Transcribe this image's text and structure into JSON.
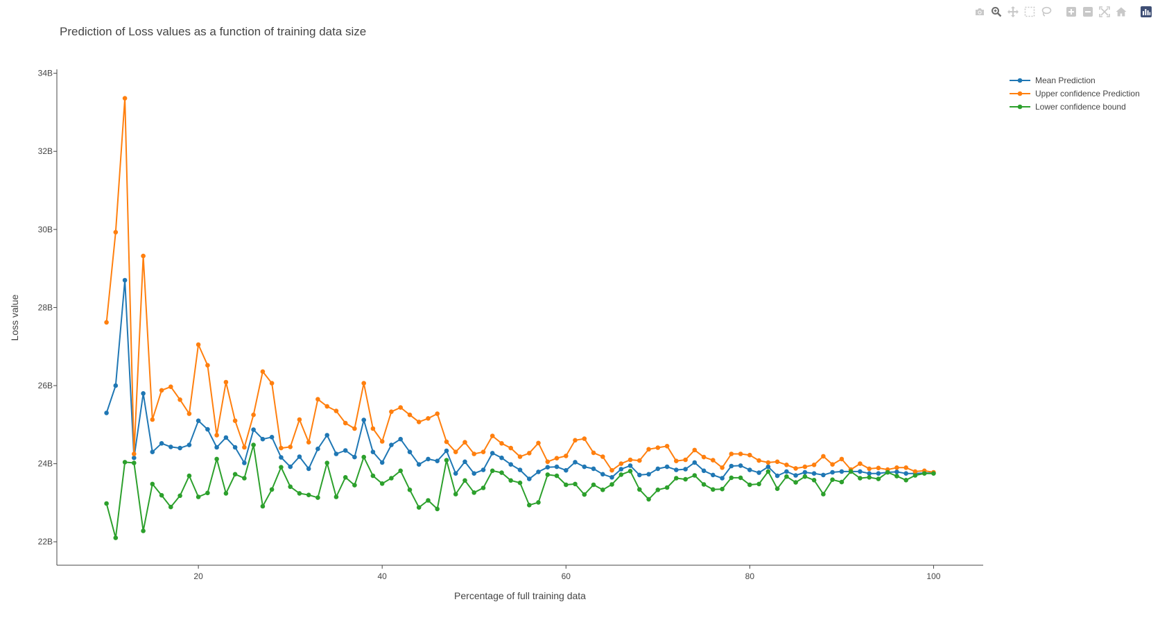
{
  "colors": {
    "mean": "#1f77b4",
    "upper": "#ff7f0e",
    "lower": "#2ca02c",
    "modebar_icon": "#c8c8c8",
    "modebar_logo": "#3f4f75"
  },
  "modebar": {
    "icons": [
      "camera-icon",
      "zoom-icon",
      "pan-icon",
      "box-select-icon",
      "lasso-icon",
      "zoom-in-icon",
      "zoom-out-icon",
      "autoscale-icon",
      "reset-axes-icon",
      "plotly-logo-icon"
    ]
  },
  "chart_data": {
    "type": "line",
    "title": "Prediction of Loss values as a function of training data size",
    "xlabel": "Percentage of full training data",
    "ylabel": "Loss value",
    "xlim": [
      4.6,
      105.4
    ],
    "ylim": [
      21.4,
      34.1
    ],
    "xticks": [
      20,
      40,
      60,
      80,
      100
    ],
    "xtick_labels": [
      "20",
      "40",
      "60",
      "80",
      "100"
    ],
    "yticks": [
      22,
      24,
      26,
      28,
      30,
      32,
      34
    ],
    "ytick_labels": [
      "22B",
      "24B",
      "26B",
      "28B",
      "30B",
      "32B",
      "34B"
    ],
    "grid": false,
    "legend_position": "top-right",
    "x": [
      10,
      11,
      12,
      13,
      14,
      15,
      16,
      17,
      18,
      19,
      20,
      21,
      22,
      23,
      24,
      25,
      26,
      27,
      28,
      29,
      30,
      31,
      32,
      33,
      34,
      35,
      36,
      37,
      38,
      39,
      40,
      41,
      42,
      43,
      44,
      45,
      46,
      47,
      48,
      49,
      50,
      51,
      52,
      53,
      54,
      55,
      56,
      57,
      58,
      59,
      60,
      61,
      62,
      63,
      64,
      65,
      66,
      67,
      68,
      69,
      70,
      71,
      72,
      73,
      74,
      75,
      76,
      77,
      78,
      79,
      80,
      81,
      82,
      83,
      84,
      85,
      86,
      87,
      88,
      89,
      90,
      91,
      92,
      93,
      94,
      95,
      96,
      97,
      98,
      99,
      100
    ],
    "series": [
      {
        "name": "Mean Prediction",
        "color_key": "mean",
        "values": [
          25.3,
          26.0,
          28.7,
          24.15,
          25.8,
          24.3,
          24.52,
          24.43,
          24.4,
          24.48,
          25.1,
          24.88,
          24.42,
          24.67,
          24.42,
          24.02,
          24.87,
          24.63,
          24.68,
          24.16,
          23.92,
          24.18,
          23.87,
          24.38,
          24.73,
          24.25,
          24.34,
          24.17,
          25.12,
          24.3,
          24.03,
          24.48,
          24.63,
          24.3,
          23.98,
          24.12,
          24.07,
          24.33,
          23.75,
          24.05,
          23.75,
          23.84,
          24.27,
          24.15,
          23.98,
          23.84,
          23.61,
          23.79,
          23.91,
          23.92,
          23.83,
          24.04,
          23.92,
          23.87,
          23.73,
          23.65,
          23.86,
          23.95,
          23.71,
          23.73,
          23.87,
          23.92,
          23.84,
          23.86,
          24.03,
          23.82,
          23.71,
          23.63,
          23.94,
          23.95,
          23.84,
          23.77,
          23.92,
          23.69,
          23.8,
          23.7,
          23.78,
          23.75,
          23.71,
          23.78,
          23.8,
          23.8,
          23.8,
          23.75,
          23.75,
          23.78,
          23.79,
          23.75,
          23.75,
          23.76,
          23.76
        ]
      },
      {
        "name": "Upper confidence Prediction",
        "color_key": "upper",
        "values": [
          27.62,
          29.93,
          33.36,
          24.25,
          29.32,
          25.13,
          25.88,
          25.97,
          25.64,
          25.28,
          27.05,
          26.52,
          24.73,
          26.09,
          25.1,
          24.42,
          25.25,
          26.36,
          26.06,
          24.4,
          24.43,
          25.13,
          24.55,
          25.65,
          25.47,
          25.35,
          25.04,
          24.9,
          26.06,
          24.9,
          24.57,
          25.33,
          25.44,
          25.25,
          25.07,
          25.16,
          25.28,
          24.56,
          24.3,
          24.55,
          24.25,
          24.3,
          24.71,
          24.52,
          24.4,
          24.18,
          24.27,
          24.53,
          24.05,
          24.14,
          24.2,
          24.6,
          24.64,
          24.28,
          24.18,
          23.83,
          24.0,
          24.1,
          24.08,
          24.37,
          24.41,
          24.45,
          24.07,
          24.1,
          24.35,
          24.17,
          24.09,
          23.9,
          24.25,
          24.25,
          24.22,
          24.08,
          24.03,
          24.05,
          23.97,
          23.88,
          23.92,
          23.97,
          24.19,
          23.98,
          24.12,
          23.85,
          24.0,
          23.87,
          23.89,
          23.85,
          23.9,
          23.9,
          23.8,
          23.82,
          23.78
        ]
      },
      {
        "name": "Lower confidence bound",
        "color_key": "lower",
        "values": [
          22.98,
          22.1,
          24.04,
          24.02,
          22.28,
          23.48,
          23.19,
          22.89,
          23.18,
          23.69,
          23.15,
          23.25,
          24.12,
          23.24,
          23.73,
          23.63,
          24.48,
          22.91,
          23.34,
          23.91,
          23.41,
          23.24,
          23.2,
          23.13,
          24.02,
          23.15,
          23.65,
          23.45,
          24.17,
          23.69,
          23.49,
          23.63,
          23.82,
          23.33,
          22.88,
          23.06,
          22.84,
          24.09,
          23.22,
          23.57,
          23.26,
          23.38,
          23.82,
          23.77,
          23.57,
          23.51,
          22.94,
          23.01,
          23.72,
          23.69,
          23.46,
          23.48,
          23.21,
          23.46,
          23.33,
          23.47,
          23.72,
          23.81,
          23.34,
          23.09,
          23.33,
          23.39,
          23.63,
          23.6,
          23.7,
          23.47,
          23.34,
          23.35,
          23.64,
          23.64,
          23.46,
          23.48,
          23.8,
          23.36,
          23.67,
          23.52,
          23.67,
          23.58,
          23.22,
          23.59,
          23.53,
          23.8,
          23.63,
          23.65,
          23.61,
          23.78,
          23.68,
          23.58,
          23.7,
          23.75,
          23.75
        ]
      }
    ]
  }
}
